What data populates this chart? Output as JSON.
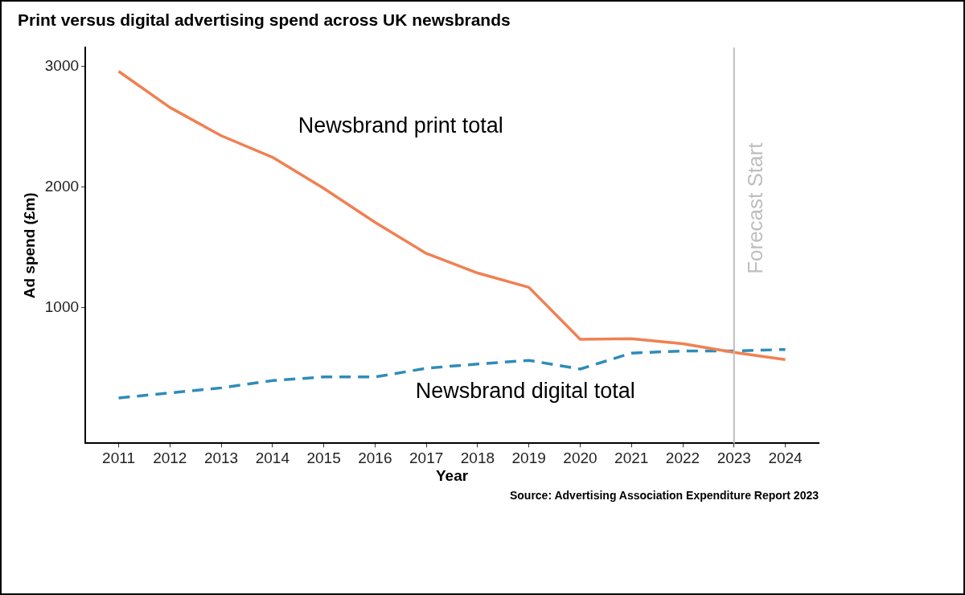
{
  "chart_data": {
    "type": "line",
    "title": "Print versus digital advertising spend across UK newsbrands",
    "xlabel": "Year",
    "ylabel": "Ad spend (£m)",
    "x": [
      2011,
      2012,
      2013,
      2014,
      2015,
      2016,
      2017,
      2018,
      2019,
      2020,
      2021,
      2022,
      2023,
      2024
    ],
    "series": [
      {
        "name": "Newsbrand print total",
        "color": "#f08052",
        "line_style": "solid",
        "values": [
          2958,
          2659,
          2425,
          2246,
          1988,
          1707,
          1449,
          1287,
          1168,
          737,
          743,
          701,
          629,
          569
        ]
      },
      {
        "name": "Newsbrand digital total",
        "color": "#2f8cb8",
        "line_style": "dashed",
        "values": [
          251,
          293,
          335,
          395,
          425,
          425,
          497,
          533,
          563,
          491,
          623,
          641,
          641,
          653
        ]
      }
    ],
    "xlim": [
      2010.35,
      2024.65
    ],
    "xticks": [
      2011,
      2012,
      2013,
      2014,
      2015,
      2016,
      2017,
      2018,
      2019,
      2020,
      2021,
      2022,
      2023,
      2024
    ],
    "ylim": [
      -125,
      3155
    ],
    "yticks": [
      1000,
      2000,
      3000
    ],
    "grid": false,
    "legend": false,
    "marker": "none",
    "ref_lines": [
      {
        "axis": "x",
        "value": 2023,
        "label": "Forecast Start",
        "color": "#bebebe"
      }
    ],
    "annotations": [
      "Source: Advertising Association Expenditure Report 2023"
    ]
  }
}
